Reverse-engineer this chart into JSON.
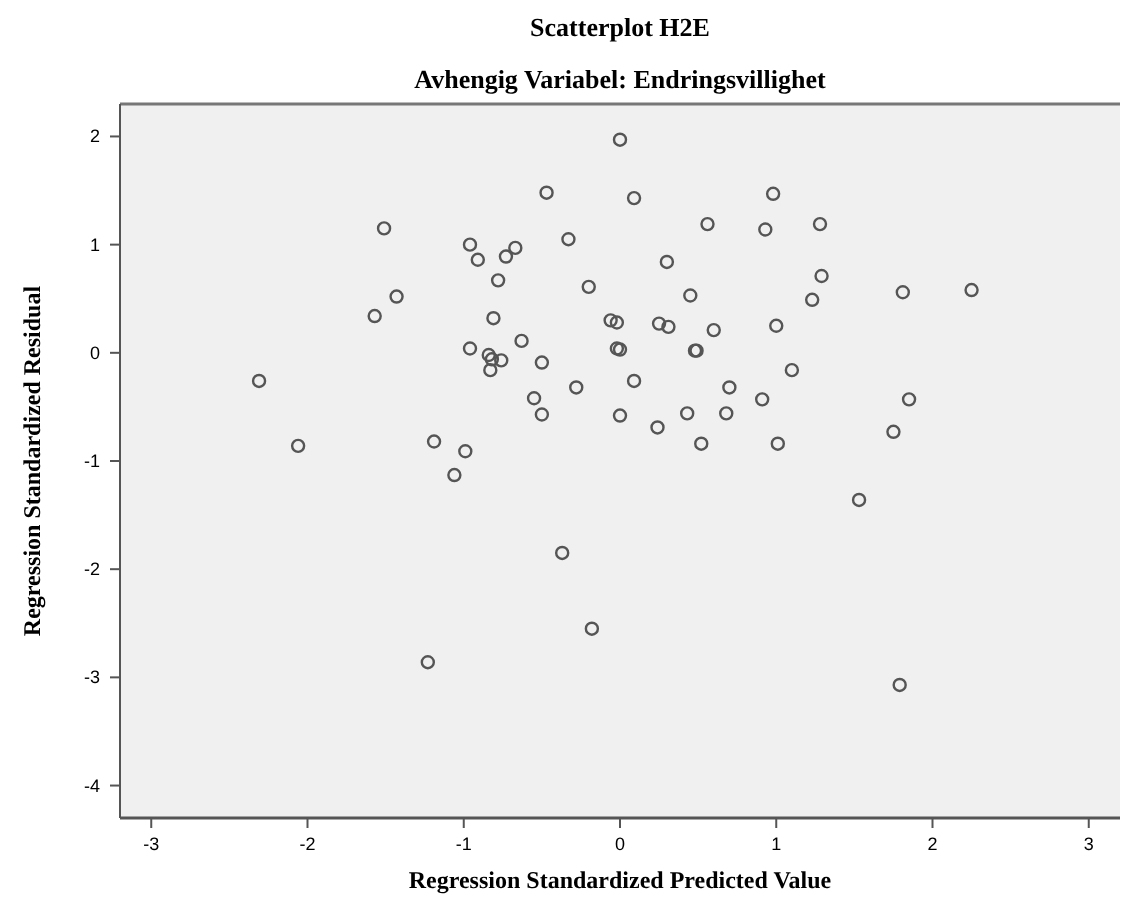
{
  "chart_data": {
    "type": "scatter",
    "title": "Scatterplot H2E",
    "subtitle": "Avhengig Variabel: Endringsvillighet",
    "xlabel": "Regression Standardized Predicted Value",
    "ylabel": "Regression Standardized Residual",
    "xlim": [
      -3.2,
      3.2
    ],
    "ylim": [
      -4.3,
      2.3
    ],
    "xticks": [
      -3,
      -2,
      -1,
      0,
      1,
      2,
      3
    ],
    "yticks": [
      -4,
      -3,
      -2,
      -1,
      0,
      1,
      2
    ],
    "grid": false,
    "marker": "circle",
    "series": [
      {
        "color": "#555555",
        "x": [
          0.0,
          -0.47,
          0.09,
          -1.51,
          -0.96,
          -0.91,
          -0.73,
          -0.67,
          -0.33,
          -0.78,
          -0.2,
          -1.43,
          -1.57,
          -0.81,
          -0.06,
          -0.02,
          -0.96,
          -0.84,
          -0.82,
          -0.76,
          -0.83,
          -0.63,
          -0.5,
          -0.02,
          0.0,
          0.09,
          -0.28,
          -0.55,
          -0.5,
          0.0,
          -1.19,
          -0.99,
          -2.31,
          -2.06,
          -1.06,
          -0.37,
          -0.18,
          -1.23,
          0.98,
          0.56,
          0.93,
          1.28,
          0.3,
          1.29,
          0.45,
          1.23,
          1.81,
          2.25,
          0.25,
          0.31,
          0.6,
          1.0,
          0.48,
          0.49,
          1.1,
          0.7,
          0.91,
          1.85,
          0.43,
          0.68,
          0.24,
          1.75,
          0.52,
          1.01,
          1.53,
          1.79
        ],
        "values": [
          1.97,
          1.48,
          1.43,
          1.15,
          1.0,
          0.86,
          0.89,
          0.97,
          1.05,
          0.67,
          0.61,
          0.52,
          0.34,
          0.32,
          0.3,
          0.28,
          0.04,
          -0.02,
          -0.06,
          -0.07,
          -0.16,
          0.11,
          -0.09,
          0.04,
          0.03,
          -0.26,
          -0.32,
          -0.42,
          -0.57,
          -0.58,
          -0.82,
          -0.91,
          -0.26,
          -0.86,
          -1.13,
          -1.85,
          -2.55,
          -2.86,
          1.47,
          1.19,
          1.14,
          1.19,
          0.84,
          0.71,
          0.53,
          0.49,
          0.56,
          0.58,
          0.27,
          0.24,
          0.21,
          0.25,
          0.02,
          0.02,
          -0.16,
          -0.32,
          -0.43,
          -0.43,
          -0.56,
          -0.56,
          -0.69,
          -0.73,
          -0.84,
          -0.84,
          -1.36,
          -3.07
        ]
      }
    ]
  }
}
